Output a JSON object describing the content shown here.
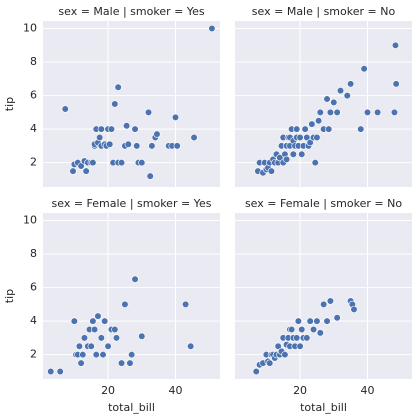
{
  "chart_data": [
    {
      "type": "scatter",
      "title": "sex = Male | smoker = Yes",
      "ylabel": "tip",
      "color": "#4c72b0",
      "grid": true,
      "xlim": [
        0.7,
        53.2
      ],
      "ylim": [
        0.55,
        10.45
      ],
      "xticks": [
        20,
        40
      ],
      "yticks": [
        2,
        4,
        6,
        8,
        10
      ],
      "x": [
        7.3,
        9.6,
        10,
        11,
        12,
        13,
        13.5,
        14,
        15,
        15.5,
        16,
        16,
        16.5,
        17,
        17.5,
        18,
        18,
        19,
        19.5,
        20,
        20.5,
        21,
        21.5,
        22,
        23,
        23,
        24,
        25,
        25.5,
        26,
        28,
        28.5,
        29,
        30,
        32,
        32.5,
        33,
        34,
        34.5,
        38,
        39,
        40,
        40.5,
        45.5,
        50.8
      ],
      "y": [
        5.2,
        1.5,
        1.9,
        2,
        1.8,
        2.1,
        1.5,
        2,
        2,
        2,
        3,
        3.1,
        4,
        3.2,
        3.5,
        4,
        3,
        3.1,
        3,
        4,
        3.1,
        4,
        2,
        5.5,
        6.5,
        2,
        2,
        3,
        4.2,
        3.1,
        4,
        3,
        2,
        2,
        5,
        1.2,
        3,
        3.5,
        3.7,
        3,
        3,
        4.7,
        3,
        3.5,
        10
      ]
    },
    {
      "type": "scatter",
      "title": "sex = Male | smoker = No",
      "color": "#4c72b0",
      "grid": true,
      "xlim": [
        0.7,
        53.2
      ],
      "ylim": [
        0.55,
        10.45
      ],
      "xticks": [
        20,
        40
      ],
      "yticks": [
        2,
        4,
        6,
        8,
        10
      ],
      "x": [
        7.5,
        8,
        9,
        9.5,
        10,
        10.5,
        11,
        11.5,
        12,
        12.5,
        13,
        13.5,
        14,
        14.5,
        15,
        15,
        15.5,
        16,
        16,
        16.5,
        17,
        17,
        17.5,
        18,
        18,
        18.5,
        19,
        19,
        19.5,
        20,
        20.5,
        21,
        21.5,
        22,
        22.5,
        23,
        23.5,
        24,
        24.5,
        25,
        25.5,
        26,
        27,
        28,
        28.5,
        29,
        30,
        31,
        32,
        34,
        35,
        38,
        39,
        40,
        43,
        48,
        48.3,
        48.5
      ],
      "y": [
        1.5,
        2,
        1.4,
        2,
        1.6,
        1.7,
        2,
        1.5,
        2.2,
        2,
        2.5,
        2,
        2.3,
        3,
        2,
        3.5,
        2.5,
        3,
        2.2,
        3.5,
        3,
        3.5,
        4,
        3.3,
        2.5,
        3,
        4,
        3.5,
        3,
        3.5,
        2.5,
        3,
        4,
        3.5,
        3,
        3.2,
        4.3,
        3.5,
        2,
        3.5,
        4.5,
        5,
        4,
        5.8,
        4,
        5,
        5.6,
        5,
        6.3,
        6,
        6.7,
        4,
        7.6,
        5,
        5,
        5,
        9,
        6.7
      ]
    },
    {
      "type": "scatter",
      "title": "sex = Female | smoker = Yes",
      "xlabel": "total_bill",
      "ylabel": "tip",
      "color": "#4c72b0",
      "grid": true,
      "xlim": [
        0.7,
        53.2
      ],
      "ylim": [
        0.55,
        10.45
      ],
      "xticks": [
        20,
        40
      ],
      "yticks": [
        2,
        4,
        6,
        8,
        10
      ],
      "x": [
        3,
        5.8,
        10,
        10.5,
        11,
        11.5,
        12,
        12.5,
        13,
        14,
        14.5,
        15,
        15.5,
        16,
        16.5,
        17,
        18,
        18.5,
        19,
        20,
        21,
        22,
        22.5,
        24,
        25,
        26.5,
        27,
        28,
        30,
        43,
        44.5
      ],
      "y": [
        1,
        1,
        4,
        2,
        2,
        2.5,
        1.5,
        2,
        3,
        2.5,
        3.5,
        2.5,
        4,
        3.5,
        2,
        4.3,
        3,
        2,
        4,
        2.5,
        3.5,
        3.5,
        3,
        1.5,
        5,
        1.5,
        2,
        6.5,
        3.1,
        5,
        2.5
      ]
    },
    {
      "type": "scatter",
      "title": "sex = Female | smoker = No",
      "xlabel": "total_bill",
      "color": "#4c72b0",
      "grid": true,
      "xlim": [
        0.7,
        53.2
      ],
      "ylim": [
        0.55,
        10.45
      ],
      "xticks": [
        20,
        40
      ],
      "yticks": [
        2,
        4,
        6,
        8,
        10
      ],
      "x": [
        7,
        8,
        9,
        10,
        10.5,
        11,
        11.5,
        12,
        12.5,
        13,
        13.5,
        14,
        14.5,
        15,
        15.5,
        16,
        16.5,
        17,
        17,
        17.5,
        18,
        18.5,
        19,
        19.5,
        20,
        20.5,
        21,
        22,
        23,
        24,
        25,
        26,
        27,
        28,
        29,
        31,
        35,
        35.5,
        36
      ],
      "y": [
        1,
        1.4,
        1.5,
        2,
        1.6,
        1.5,
        2,
        2,
        1.8,
        2,
        2.5,
        2,
        2.2,
        3,
        2,
        2.6,
        3,
        3.5,
        2.5,
        3.5,
        3,
        2.5,
        3,
        4,
        2.5,
        3.5,
        3,
        3,
        4,
        3.5,
        4,
        3.3,
        5,
        4,
        5.2,
        4.2,
        5.2,
        5,
        4.7
      ]
    }
  ]
}
